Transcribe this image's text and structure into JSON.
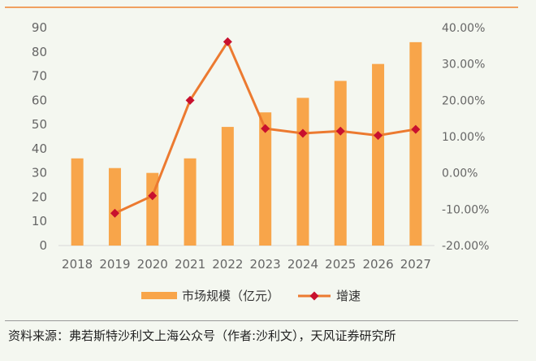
{
  "chart_data": {
    "type": "bar+line",
    "categories": [
      "2018",
      "2019",
      "2020",
      "2021",
      "2022",
      "2023",
      "2024",
      "2025",
      "2026",
      "2027"
    ],
    "series": [
      {
        "name": "市场规模（亿元）",
        "type": "bar",
        "axis": "left",
        "color": "#f8a54a",
        "values": [
          36,
          32,
          30,
          36,
          49,
          55,
          61,
          68,
          75,
          84
        ]
      },
      {
        "name": "增速",
        "type": "line",
        "axis": "right",
        "color": "#ec7a30",
        "marker_color": "#c8102e",
        "values": [
          null,
          -11.1,
          -6.3,
          20.0,
          36.1,
          12.2,
          10.9,
          11.5,
          10.3,
          12.0
        ]
      }
    ],
    "left_axis": {
      "ylim": [
        0,
        90
      ],
      "ticks": [
        "0",
        "10",
        "20",
        "30",
        "40",
        "50",
        "60",
        "70",
        "80",
        "90"
      ]
    },
    "right_axis": {
      "ylim": [
        -20,
        40
      ],
      "ticks": [
        "-20.00%",
        "-10.00%",
        "0.00%",
        "10.00%",
        "20.00%",
        "30.00%",
        "40.00%"
      ]
    },
    "legend_position": "bottom"
  },
  "source": "资料来源：弗若斯特沙利文上海公众号（作者:沙利文），天风证券研究所"
}
